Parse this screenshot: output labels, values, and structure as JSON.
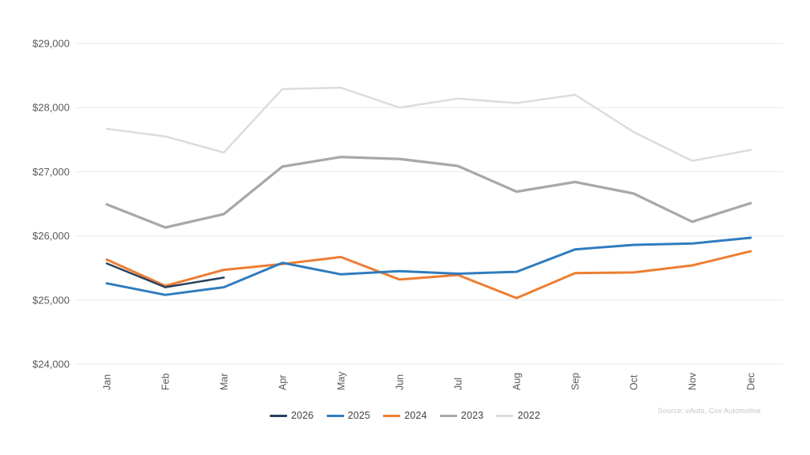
{
  "source_note": "Source: vAuto, Cox Automotive",
  "chart_data": {
    "type": "line",
    "categories": [
      "Jan",
      "Feb",
      "Mar",
      "Apr",
      "May",
      "Jun",
      "Jul",
      "Aug",
      "Sep",
      "Oct",
      "Nov",
      "Dec"
    ],
    "series": [
      {
        "name": "2026",
        "color": "#26415e",
        "values": [
          25570,
          25200,
          25350,
          null,
          null,
          null,
          null,
          null,
          null,
          null,
          null,
          null
        ]
      },
      {
        "name": "2025",
        "color": "#2e7cbe",
        "values": [
          25260,
          25080,
          25200,
          25580,
          25400,
          25450,
          25410,
          25440,
          25790,
          25860,
          25880,
          25970
        ]
      },
      {
        "name": "2024",
        "color": "#ed7d31",
        "values": [
          25630,
          25220,
          25470,
          25560,
          25670,
          25320,
          25390,
          25030,
          25420,
          25430,
          25540,
          25760
        ]
      },
      {
        "name": "2023",
        "color": "#a8a8a8",
        "values": [
          26490,
          26130,
          26340,
          27080,
          27230,
          27200,
          27090,
          26690,
          26840,
          26660,
          26220,
          26510
        ]
      },
      {
        "name": "2022",
        "color": "#dcdcdc",
        "values": [
          27670,
          27550,
          27300,
          28290,
          28310,
          28000,
          28140,
          28070,
          28200,
          27620,
          27170,
          27340
        ]
      }
    ],
    "ylim": [
      24000,
      29000
    ],
    "ytick_step": 1000,
    "ytick_labels": [
      "$24,000",
      "$25,000",
      "$26,000",
      "$27,000",
      "$28,000",
      "$29,000"
    ],
    "grid": "horizontal gridlines only",
    "legend_position": "bottom-center",
    "colors": {
      "gridline": "#e9e9e9",
      "axis_text": "#595959",
      "legend_text": "#404040",
      "source_text": "#c5c5c5",
      "background": "#ffffff"
    }
  }
}
